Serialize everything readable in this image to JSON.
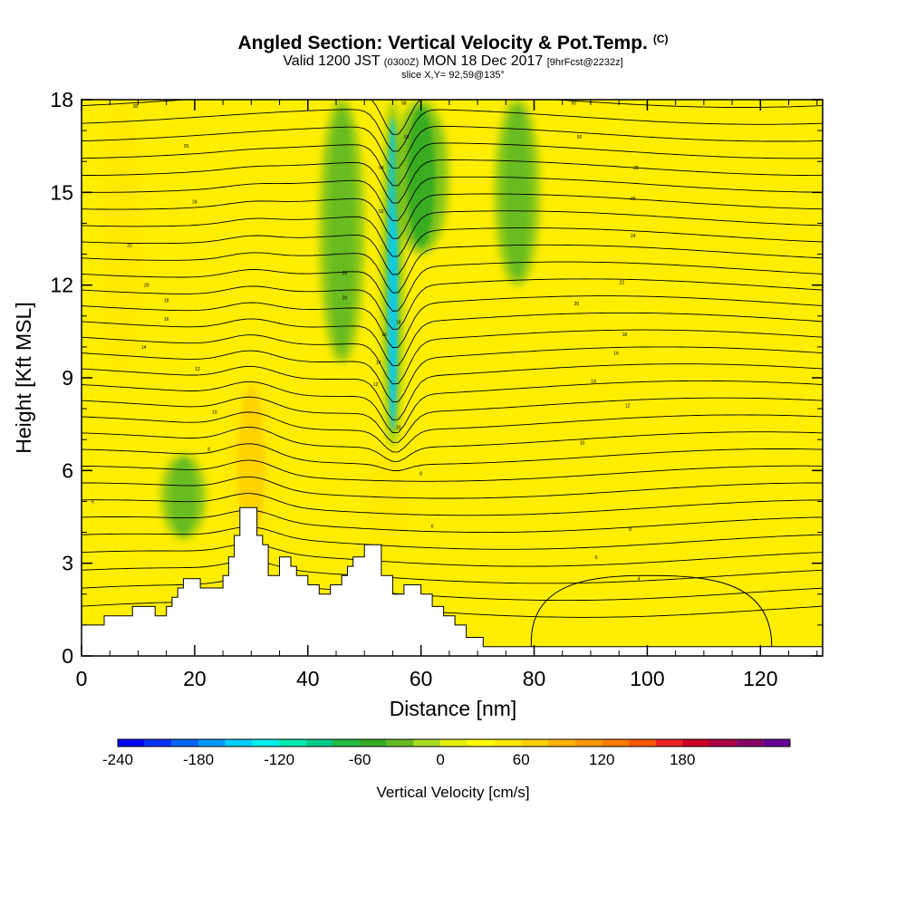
{
  "title": {
    "main": "Angled Section: Vertical Velocity & Pot.Temp.",
    "units_tag": "(C)",
    "valid_prefix": "Valid 1200 JST",
    "valid_utc": "(0300Z)",
    "valid_date": "MON 18 Dec 2017",
    "forecast": "[9hrFcst@2232z]",
    "slice": "slice X,Y= 92,59@135°"
  },
  "chart_data": {
    "type": "heatmap",
    "subtype": "vertical cross-section (filled contours of vertical velocity with potential temperature contour lines and terrain)",
    "xlabel": "Distance [nm]",
    "ylabel": "Height [Kft MSL]",
    "xlim": [
      0,
      131
    ],
    "ylim": [
      0,
      18
    ],
    "x_ticks": [
      0,
      20,
      40,
      60,
      80,
      100,
      120
    ],
    "y_ticks": [
      0,
      3,
      6,
      9,
      12,
      15,
      18
    ],
    "colorbar": {
      "label": "Vertical Velocity [cm/s]",
      "ticks": [
        -240,
        -180,
        -120,
        -60,
        0,
        60,
        120,
        180
      ],
      "range": [
        -240,
        210
      ],
      "step": 20,
      "colors": [
        "#0000ff",
        "#0033ff",
        "#0066ff",
        "#0099ff",
        "#00ccff",
        "#00eeee",
        "#00e8b0",
        "#00cc88",
        "#22bb44",
        "#33aa22",
        "#66bb22",
        "#a8dd22",
        "#e6ee10",
        "#ffff00",
        "#ffe800",
        "#ffd000",
        "#ffb400",
        "#ff9800",
        "#ff7c00",
        "#ff5a00",
        "#ee2222",
        "#cc0022",
        "#aa0044",
        "#880066",
        "#660099"
      ]
    },
    "updraft_downdraft_features": [
      {
        "kind": "strong downdraft",
        "x_nm": 55,
        "y_kft": [
          6.7,
          18
        ],
        "min_cm_s": -150
      },
      {
        "kind": "downdraft",
        "x_nm": 60,
        "y_kft": [
          13,
          18
        ],
        "min_cm_s": -60
      },
      {
        "kind": "downdraft",
        "x_nm": 46,
        "y_kft": [
          9.5,
          18
        ],
        "min_cm_s": -40
      },
      {
        "kind": "downdraft",
        "x_nm": 77,
        "y_kft": [
          12,
          18
        ],
        "min_cm_s": -40
      },
      {
        "kind": "downdraft",
        "x_nm": 18,
        "y_kft": [
          3.8,
          6.5
        ],
        "min_cm_s": -40
      },
      {
        "kind": "updraft",
        "x_nm": 30,
        "y_kft": [
          3.5,
          9
        ],
        "max_cm_s": 60
      },
      {
        "kind": "updraft",
        "x_nm": 54,
        "y_kft": [
          3.5,
          6.5
        ],
        "max_cm_s": 50
      },
      {
        "kind": "updraft",
        "x_nm": 7,
        "y_kft": [
          9,
          18
        ],
        "max_cm_s": 40
      }
    ],
    "terrain_kft": [
      [
        0,
        1.0
      ],
      [
        4,
        1.0
      ],
      [
        4,
        1.3
      ],
      [
        9,
        1.3
      ],
      [
        9,
        1.6
      ],
      [
        13,
        1.6
      ],
      [
        13,
        1.3
      ],
      [
        15,
        1.3
      ],
      [
        15,
        1.6
      ],
      [
        16,
        1.6
      ],
      [
        16,
        1.9
      ],
      [
        17,
        1.9
      ],
      [
        17,
        2.2
      ],
      [
        18,
        2.2
      ],
      [
        18,
        2.5
      ],
      [
        21,
        2.5
      ],
      [
        21,
        2.2
      ],
      [
        25,
        2.2
      ],
      [
        25,
        2.6
      ],
      [
        26,
        2.6
      ],
      [
        26,
        3.2
      ],
      [
        27,
        3.2
      ],
      [
        27,
        3.9
      ],
      [
        28,
        3.9
      ],
      [
        28,
        4.8
      ],
      [
        31,
        4.8
      ],
      [
        31,
        3.9
      ],
      [
        32,
        3.9
      ],
      [
        32,
        3.6
      ],
      [
        33,
        3.6
      ],
      [
        33,
        2.6
      ],
      [
        35,
        2.6
      ],
      [
        35,
        3.2
      ],
      [
        37,
        3.2
      ],
      [
        37,
        2.9
      ],
      [
        38,
        2.9
      ],
      [
        38,
        2.6
      ],
      [
        40,
        2.6
      ],
      [
        40,
        2.3
      ],
      [
        42,
        2.3
      ],
      [
        42,
        2.0
      ],
      [
        44,
        2.0
      ],
      [
        44,
        2.3
      ],
      [
        46,
        2.3
      ],
      [
        46,
        2.6
      ],
      [
        47,
        2.6
      ],
      [
        47,
        2.9
      ],
      [
        48,
        2.9
      ],
      [
        48,
        3.2
      ],
      [
        50,
        3.2
      ],
      [
        50,
        3.6
      ],
      [
        53,
        3.6
      ],
      [
        53,
        2.6
      ],
      [
        55,
        2.6
      ],
      [
        55,
        2.0
      ],
      [
        57,
        2.0
      ],
      [
        57,
        2.3
      ],
      [
        60,
        2.3
      ],
      [
        60,
        2.0
      ],
      [
        62,
        2.0
      ],
      [
        62,
        1.6
      ],
      [
        64,
        1.6
      ],
      [
        64,
        1.3
      ],
      [
        66,
        1.3
      ],
      [
        66,
        1.0
      ],
      [
        68,
        1.0
      ],
      [
        68,
        0.6
      ],
      [
        71,
        0.6
      ],
      [
        71,
        0.3
      ],
      [
        131,
        0.3
      ]
    ],
    "potential_temperature_contour_labels": [
      {
        "label": "58",
        "x": 57,
        "y": 17.9
      },
      {
        "label": "56",
        "x": 57.5,
        "y": 16.8
      },
      {
        "label": "54",
        "x": 53,
        "y": 15.8
      },
      {
        "label": "52",
        "x": 53,
        "y": 14.4
      },
      {
        "label": "50",
        "x": 87,
        "y": 17.9
      },
      {
        "label": "50",
        "x": 88,
        "y": 16.8
      },
      {
        "label": "28",
        "x": 98,
        "y": 15.8
      },
      {
        "label": "26",
        "x": 97.5,
        "y": 14.8
      },
      {
        "label": "24",
        "x": 97.5,
        "y": 13.6
      },
      {
        "label": "22",
        "x": 95.5,
        "y": 12.1
      },
      {
        "label": "20",
        "x": 87.5,
        "y": 11.4
      },
      {
        "label": "28",
        "x": 9.5,
        "y": 17.8
      },
      {
        "label": "26",
        "x": 18.5,
        "y": 16.5
      },
      {
        "label": "24",
        "x": 20,
        "y": 14.7
      },
      {
        "label": "22",
        "x": 8.5,
        "y": 13.3
      },
      {
        "label": "20",
        "x": 11.5,
        "y": 12.0
      },
      {
        "label": "18",
        "x": 15,
        "y": 11.5
      },
      {
        "label": "16",
        "x": 15,
        "y": 10.9
      },
      {
        "label": "14",
        "x": 11,
        "y": 10.0
      },
      {
        "label": "12",
        "x": 20.5,
        "y": 9.3
      },
      {
        "label": "10",
        "x": 23.5,
        "y": 7.9
      },
      {
        "label": "8",
        "x": 22.5,
        "y": 6.7
      },
      {
        "label": "6",
        "x": 2,
        "y": 5.0
      },
      {
        "label": "28",
        "x": 46.5,
        "y": 12.4
      },
      {
        "label": "20",
        "x": 46.5,
        "y": 11.6
      },
      {
        "label": "18",
        "x": 56,
        "y": 10.8
      },
      {
        "label": "16",
        "x": 53.5,
        "y": 10.4
      },
      {
        "label": "14",
        "x": 52.5,
        "y": 9.5
      },
      {
        "label": "12",
        "x": 52,
        "y": 8.8
      },
      {
        "label": "10",
        "x": 56,
        "y": 7.4
      },
      {
        "label": "8",
        "x": 60,
        "y": 5.9
      },
      {
        "label": "6",
        "x": 62,
        "y": 4.2
      },
      {
        "label": "18",
        "x": 96,
        "y": 10.4
      },
      {
        "label": "16",
        "x": 94.5,
        "y": 9.8
      },
      {
        "label": "14",
        "x": 90.5,
        "y": 8.9
      },
      {
        "label": "12",
        "x": 96.5,
        "y": 8.1
      },
      {
        "label": "10",
        "x": 88.5,
        "y": 6.9
      },
      {
        "label": "8",
        "x": 97,
        "y": 4.1
      },
      {
        "label": "6",
        "x": 91,
        "y": 3.2
      },
      {
        "label": "4",
        "x": 98.5,
        "y": 2.5
      }
    ]
  }
}
